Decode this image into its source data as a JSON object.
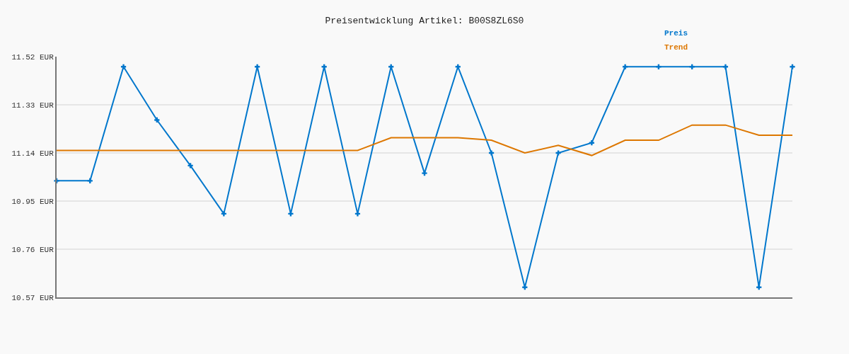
{
  "chart_data": {
    "type": "line",
    "title": "Preisentwicklung Artikel: B00S8ZL6S0",
    "categories": [
      null,
      null,
      null,
      null,
      null,
      null,
      null,
      null,
      null,
      null,
      null,
      null,
      null,
      null,
      null,
      null,
      null,
      null,
      null,
      null,
      null,
      null,
      null
    ],
    "series": [
      {
        "name": "Preis",
        "color": "#0077cc",
        "values": [
          11.03,
          11.03,
          11.48,
          11.27,
          11.09,
          10.9,
          11.48,
          10.9,
          11.48,
          10.9,
          11.48,
          11.06,
          11.48,
          11.14,
          10.61,
          11.14,
          11.18,
          11.48,
          11.48,
          11.48,
          11.48,
          10.61,
          11.48
        ]
      },
      {
        "name": "Trend",
        "color": "#dd7700",
        "marker": "none",
        "values": [
          11.15,
          11.15,
          11.15,
          11.15,
          11.15,
          11.15,
          11.15,
          11.15,
          11.15,
          11.15,
          11.2,
          11.2,
          11.2,
          11.19,
          11.14,
          11.17,
          11.13,
          11.19,
          11.19,
          11.25,
          11.25,
          11.21,
          11.21
        ]
      }
    ],
    "ylim": [
      10.57,
      11.52
    ],
    "yticks": [
      {
        "value": 10.57,
        "label": "10.57 EUR"
      },
      {
        "value": 10.76,
        "label": "10.76 EUR"
      },
      {
        "value": 10.95,
        "label": "10.95 EUR"
      },
      {
        "value": 11.14,
        "label": "11.14 EUR"
      },
      {
        "value": 11.33,
        "label": "11.33 EUR"
      },
      {
        "value": 11.52,
        "label": "11.52 EUR"
      }
    ],
    "grid": "y",
    "legend": "top right",
    "marker": "cross",
    "line_style": "solid",
    "tick_labels": "y"
  }
}
